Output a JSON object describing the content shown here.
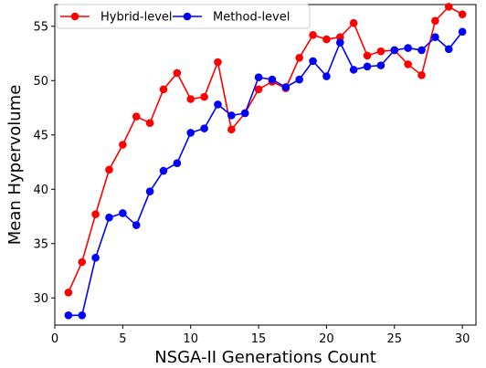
{
  "chart_data": {
    "type": "line",
    "xlabel": "NSGA-II Generations Count",
    "ylabel": "Mean Hypervolume",
    "xlim": [
      0,
      31
    ],
    "ylim": [
      27.5,
      57
    ],
    "xticks": [
      0,
      5,
      10,
      15,
      20,
      25,
      30
    ],
    "yticks": [
      30,
      35,
      40,
      45,
      50,
      55
    ],
    "grid": false,
    "legend_position": "top-left",
    "x": [
      1,
      2,
      3,
      4,
      5,
      6,
      7,
      8,
      9,
      10,
      11,
      12,
      13,
      14,
      15,
      16,
      17,
      18,
      19,
      20,
      21,
      22,
      23,
      24,
      25,
      26,
      27,
      28,
      29,
      30
    ],
    "series": [
      {
        "name": "Hybrid-level",
        "color": "#ff0000",
        "values": [
          30.5,
          33.3,
          37.7,
          41.8,
          44.1,
          46.7,
          46.1,
          49.2,
          50.7,
          48.3,
          48.5,
          51.7,
          45.5,
          47.0,
          49.2,
          49.9,
          49.3,
          52.1,
          54.2,
          53.8,
          54.0,
          55.3,
          52.3,
          52.7,
          52.8,
          51.5,
          50.5,
          55.5,
          56.8,
          56.1
        ],
        "marker": "circle"
      },
      {
        "name": "Method-level",
        "color": "#0000ff",
        "values": [
          28.4,
          28.4,
          33.7,
          37.4,
          37.8,
          36.7,
          39.8,
          41.7,
          42.4,
          45.2,
          45.6,
          47.8,
          46.8,
          47.0,
          50.3,
          50.1,
          49.4,
          50.1,
          51.8,
          50.4,
          53.5,
          51.0,
          51.3,
          51.4,
          52.8,
          53.0,
          52.8,
          54.0,
          52.9,
          54.5
        ],
        "marker": "circle"
      }
    ]
  }
}
